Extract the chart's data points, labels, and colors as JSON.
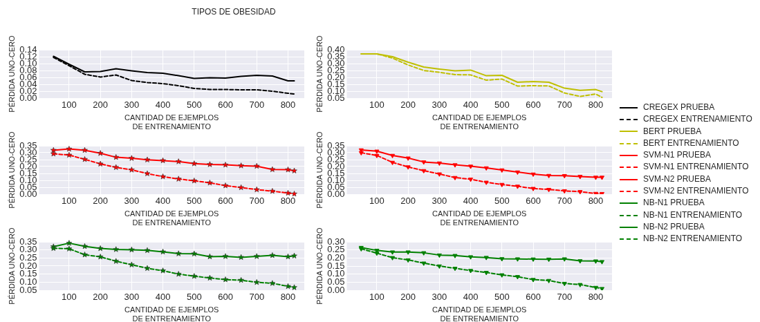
{
  "chart_data": [
    {
      "type": "line",
      "title": "TIPOS DE OBESIDAD",
      "xlabel": "CANTIDAD DE EJEMPLOS\nDE ENTRENAMIENTO",
      "ylabel": "PÉRDIDA UNO-CERO",
      "grid": true,
      "legend": "right",
      "x": [
        50,
        100,
        150,
        200,
        250,
        300,
        350,
        400,
        450,
        500,
        550,
        600,
        650,
        700,
        750,
        800,
        820
      ],
      "xlim": [
        4,
        852
      ],
      "xticks": [
        100,
        200,
        300,
        400,
        500,
        600,
        700,
        800
      ],
      "ylim": [
        0,
        0.14
      ],
      "yticks": [
        {
          "value": 0,
          "label": "0.00"
        },
        {
          "value": 0.02,
          "label": "0.02"
        },
        {
          "value": 0.04,
          "label": "0.04"
        },
        {
          "value": 0.06,
          "label": "0.06"
        },
        {
          "value": 0.08,
          "label": "0.08"
        },
        {
          "value": 0.1,
          "label": "0.10"
        },
        {
          "value": 0.12,
          "label": "0.12"
        },
        {
          "value": 0.14,
          "label": "0.14"
        }
      ],
      "series": [
        {
          "name": "CREGEX PRUEBA",
          "color": "#000000",
          "line_style": "solid",
          "marker": "none",
          "values": [
            0.121,
            0.098,
            0.076,
            0.077,
            0.085,
            0.079,
            0.074,
            0.072,
            0.065,
            0.057,
            0.059,
            0.058,
            0.063,
            0.066,
            0.064,
            0.05,
            0.05
          ]
        },
        {
          "name": "CREGEX ENTRENAMIENTO",
          "color": "#000000",
          "line_style": "dashed",
          "marker": "none",
          "values": [
            0.118,
            0.094,
            0.069,
            0.061,
            0.067,
            0.051,
            0.045,
            0.042,
            0.036,
            0.028,
            0.025,
            0.025,
            0.024,
            0.024,
            0.02,
            0.014,
            0.012
          ]
        }
      ]
    },
    {
      "type": "line",
      "xlabel": "CANTIDAD DE EJEMPLOS\nDE ENTRENAMIENTO",
      "ylabel": "PÉRDIDA UNO-CERO",
      "grid": true,
      "legend": "right",
      "x": [
        50,
        100,
        150,
        200,
        250,
        300,
        350,
        400,
        450,
        500,
        550,
        600,
        650,
        700,
        750,
        800,
        820
      ],
      "xlim": [
        4,
        852
      ],
      "xticks": [
        100,
        200,
        300,
        400,
        500,
        600,
        700,
        800
      ],
      "ylim": [
        0.05,
        0.4
      ],
      "yticks": [
        {
          "value": 0.05,
          "label": "0.05"
        },
        {
          "value": 0.1,
          "label": "0.10"
        },
        {
          "value": 0.15,
          "label": "0.15"
        },
        {
          "value": 0.2,
          "label": "0.20"
        },
        {
          "value": 0.25,
          "label": "0.25"
        },
        {
          "value": 0.3,
          "label": "0.30"
        },
        {
          "value": 0.35,
          "label": "0.35"
        },
        {
          "value": 0.4,
          "label": "0.40"
        }
      ],
      "series": [
        {
          "name": "BERT PRUEBA",
          "color": "#bfbf00",
          "line_style": "solid",
          "marker": "none",
          "values": [
            0.37,
            0.37,
            0.35,
            0.31,
            0.275,
            0.26,
            0.247,
            0.253,
            0.212,
            0.215,
            0.165,
            0.17,
            0.165,
            0.122,
            0.106,
            0.112,
            0.097
          ]
        },
        {
          "name": "BERT ENTRENAMIENTO",
          "color": "#bfbf00",
          "line_style": "dashed",
          "marker": "none",
          "values": [
            0.37,
            0.37,
            0.34,
            0.29,
            0.25,
            0.237,
            0.22,
            0.218,
            0.18,
            0.188,
            0.137,
            0.14,
            0.138,
            0.087,
            0.062,
            0.08,
            0.055
          ]
        }
      ]
    },
    {
      "type": "line",
      "xlabel": "CANTIDAD DE EJEMPLOS\nDE ENTRENAMIENTO",
      "ylabel": "PÉRDIDA UNO-CERO",
      "grid": true,
      "legend": "right",
      "x": [
        50,
        100,
        150,
        200,
        250,
        300,
        350,
        400,
        450,
        500,
        550,
        600,
        650,
        700,
        750,
        800,
        820
      ],
      "xlim": [
        4,
        852
      ],
      "xticks": [
        100,
        200,
        300,
        400,
        500,
        600,
        700,
        800
      ],
      "ylim": [
        0,
        0.35
      ],
      "yticks": [
        {
          "value": 0,
          "label": "0.00"
        },
        {
          "value": 0.05,
          "label": "0.05"
        },
        {
          "value": 0.1,
          "label": "0.10"
        },
        {
          "value": 0.15,
          "label": "0.15"
        },
        {
          "value": 0.2,
          "label": "0.20"
        },
        {
          "value": 0.25,
          "label": "0.25"
        },
        {
          "value": 0.3,
          "label": "0.30"
        },
        {
          "value": 0.35,
          "label": "0.35"
        }
      ],
      "series": [
        {
          "name": "SVM-N1 PRUEBA",
          "color": "#ff0000",
          "line_style": "solid",
          "marker": "star",
          "values": [
            0.318,
            0.327,
            0.318,
            0.296,
            0.267,
            0.26,
            0.249,
            0.243,
            0.236,
            0.221,
            0.215,
            0.212,
            0.206,
            0.203,
            0.179,
            0.177,
            0.169
          ]
        },
        {
          "name": "SVM-N1 ENTRENAMIENTO",
          "color": "#ff0000",
          "line_style": "dashed",
          "marker": "star",
          "values": [
            0.292,
            0.283,
            0.252,
            0.219,
            0.194,
            0.176,
            0.149,
            0.127,
            0.11,
            0.097,
            0.082,
            0.062,
            0.048,
            0.033,
            0.022,
            0.008,
            0.002
          ]
        }
      ]
    },
    {
      "type": "line",
      "xlabel": "CANTIDAD DE EJEMPLOS\nDE ENTRENAMIENTO",
      "ylabel": "PÉRDIDA UNO-CERO",
      "grid": true,
      "legend": "right",
      "x": [
        50,
        100,
        150,
        200,
        250,
        300,
        350,
        400,
        450,
        500,
        550,
        600,
        650,
        700,
        750,
        800,
        820
      ],
      "xlim": [
        4,
        852
      ],
      "xticks": [
        100,
        200,
        300,
        400,
        500,
        600,
        700,
        800
      ],
      "ylim": [
        0,
        0.35
      ],
      "yticks": [
        {
          "value": 0,
          "label": "0.00"
        },
        {
          "value": 0.05,
          "label": "0.05"
        },
        {
          "value": 0.1,
          "label": "0.10"
        },
        {
          "value": 0.15,
          "label": "0.15"
        },
        {
          "value": 0.2,
          "label": "0.20"
        },
        {
          "value": 0.25,
          "label": "0.25"
        },
        {
          "value": 0.3,
          "label": "0.30"
        },
        {
          "value": 0.35,
          "label": "0.35"
        }
      ],
      "series": [
        {
          "name": "SVM-N2 PRUEBA",
          "color": "#ff0000",
          "line_style": "solid",
          "marker": "triangle",
          "values": [
            0.32,
            0.311,
            0.28,
            0.261,
            0.233,
            0.225,
            0.212,
            0.202,
            0.19,
            0.175,
            0.16,
            0.145,
            0.135,
            0.134,
            0.128,
            0.122,
            0.122
          ]
        },
        {
          "name": "SVM-N2 ENTRENAMIENTO",
          "color": "#ff0000",
          "line_style": "dashed",
          "marker": "triangle",
          "values": [
            0.3,
            0.28,
            0.23,
            0.197,
            0.17,
            0.146,
            0.12,
            0.108,
            0.086,
            0.07,
            0.057,
            0.041,
            0.034,
            0.024,
            0.018,
            0.005,
            0.004
          ]
        }
      ]
    },
    {
      "type": "line",
      "xlabel": "CANTIDAD DE EJEMPLOS\nDE ENTRENAMIENTO",
      "ylabel": "PÉRDIDA UNO-CERO",
      "grid": true,
      "legend": "right",
      "x": [
        50,
        100,
        150,
        200,
        250,
        300,
        350,
        400,
        450,
        500,
        550,
        600,
        650,
        700,
        750,
        800,
        820
      ],
      "xlim": [
        4,
        852
      ],
      "xticks": [
        100,
        200,
        300,
        400,
        500,
        600,
        700,
        800
      ],
      "ylim": [
        0.05,
        0.35
      ],
      "yticks": [
        {
          "value": 0.05,
          "label": "0.05"
        },
        {
          "value": 0.1,
          "label": "0.10"
        },
        {
          "value": 0.15,
          "label": "0.15"
        },
        {
          "value": 0.2,
          "label": "0.20"
        },
        {
          "value": 0.25,
          "label": "0.25"
        },
        {
          "value": 0.3,
          "label": "0.30"
        },
        {
          "value": 0.35,
          "label": "0.35"
        }
      ],
      "series": [
        {
          "name": "NB-N1 PRUEBA",
          "color": "#008000",
          "line_style": "solid",
          "marker": "star",
          "values": [
            0.32,
            0.342,
            0.322,
            0.309,
            0.303,
            0.301,
            0.297,
            0.288,
            0.277,
            0.276,
            0.258,
            0.26,
            0.254,
            0.26,
            0.266,
            0.258,
            0.263
          ]
        },
        {
          "name": "NB-N1 ENTRENAMIENTO",
          "color": "#008000",
          "line_style": "dashed",
          "marker": "star",
          "values": [
            0.31,
            0.307,
            0.27,
            0.257,
            0.23,
            0.208,
            0.186,
            0.171,
            0.15,
            0.137,
            0.126,
            0.116,
            0.112,
            0.099,
            0.093,
            0.074,
            0.067
          ]
        }
      ]
    },
    {
      "type": "line",
      "xlabel": "CANTIDAD DE EJEMPLOS\nDE ENTRENAMIENTO",
      "ylabel": "PÉRDIDA UNO-CERO",
      "grid": true,
      "legend": "right",
      "x": [
        50,
        100,
        150,
        200,
        250,
        300,
        350,
        400,
        450,
        500,
        550,
        600,
        650,
        700,
        750,
        800,
        820
      ],
      "xlim": [
        4,
        852
      ],
      "xticks": [
        100,
        200,
        300,
        400,
        500,
        600,
        700,
        800
      ],
      "ylim": [
        0,
        0.3
      ],
      "yticks": [
        {
          "value": 0,
          "label": "0.00"
        },
        {
          "value": 0.05,
          "label": "0.05"
        },
        {
          "value": 0.1,
          "label": "0.10"
        },
        {
          "value": 0.15,
          "label": "0.15"
        },
        {
          "value": 0.2,
          "label": "0.20"
        },
        {
          "value": 0.25,
          "label": "0.25"
        },
        {
          "value": 0.3,
          "label": "0.30"
        }
      ],
      "series": [
        {
          "name": "NB-N2 PRUEBA",
          "color": "#008000",
          "line_style": "solid",
          "marker": "triangle",
          "values": [
            0.265,
            0.247,
            0.237,
            0.237,
            0.232,
            0.218,
            0.215,
            0.207,
            0.203,
            0.195,
            0.194,
            0.193,
            0.192,
            0.194,
            0.182,
            0.181,
            0.177
          ]
        },
        {
          "name": "NB-N2 ENTRENAMIENTO",
          "color": "#008000",
          "line_style": "dashed",
          "marker": "triangle",
          "values": [
            0.257,
            0.23,
            0.202,
            0.188,
            0.168,
            0.15,
            0.136,
            0.122,
            0.11,
            0.095,
            0.084,
            0.066,
            0.06,
            0.042,
            0.035,
            0.017,
            0.01
          ]
        }
      ]
    }
  ]
}
